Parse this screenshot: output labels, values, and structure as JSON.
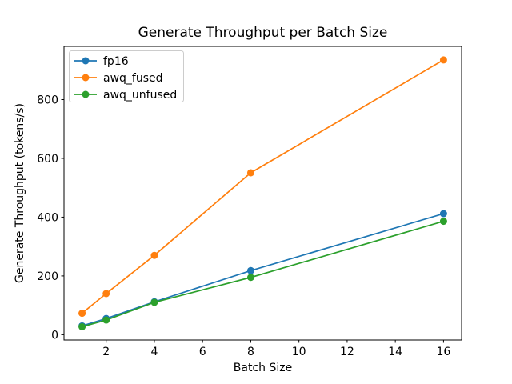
{
  "chart_data": {
    "type": "line",
    "title": "Generate Throughput per Batch Size",
    "xlabel": "Batch Size",
    "ylabel": "Generate Throughput (tokens/s)",
    "x": [
      1,
      2,
      4,
      8,
      16
    ],
    "series": [
      {
        "name": "fp16",
        "color": "#1f77b4",
        "values": [
          30,
          55,
          112,
          218,
          412
        ]
      },
      {
        "name": "awq_fused",
        "color": "#ff7f0e",
        "values": [
          73,
          140,
          270,
          551,
          935
        ]
      },
      {
        "name": "awq_unfused",
        "color": "#2ca02c",
        "values": [
          27,
          50,
          110,
          195,
          386
        ]
      }
    ],
    "xticks": [
      2,
      4,
      6,
      8,
      10,
      12,
      14,
      16
    ],
    "yticks": [
      0,
      200,
      400,
      600,
      800
    ],
    "xlim": [
      0.25,
      16.75
    ],
    "ylim": [
      -18,
      981
    ],
    "grid": false,
    "marker": "circle",
    "legend_position": "upper left",
    "colors": {
      "spine": "#000000",
      "legend_border": "#cccccc",
      "background": "#ffffff"
    }
  }
}
